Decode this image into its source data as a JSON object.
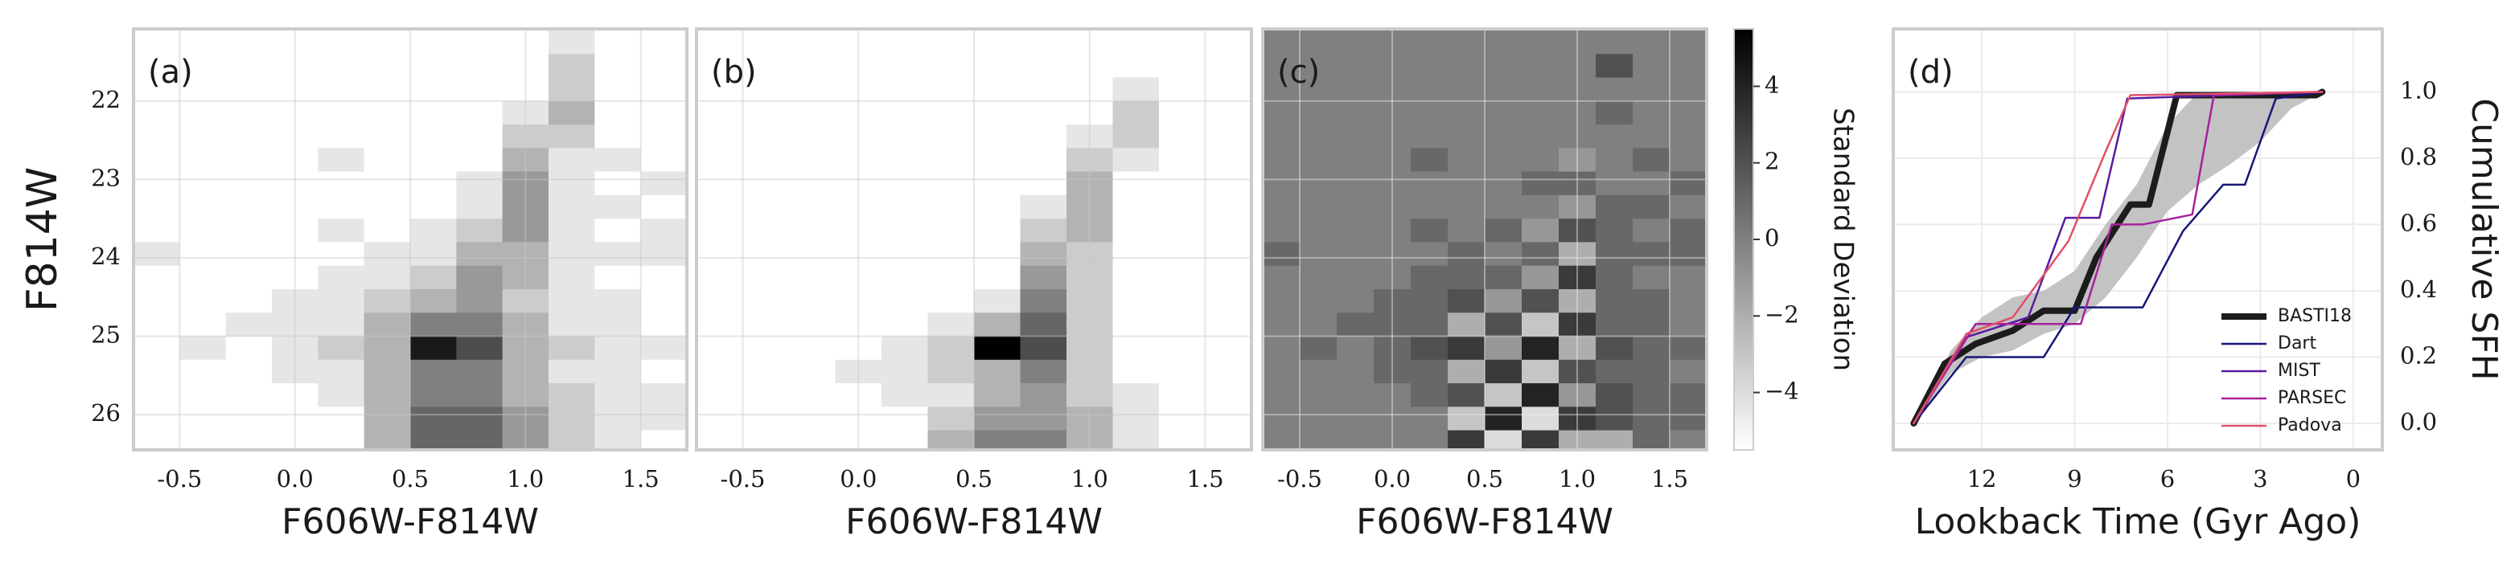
{
  "chart_data": [
    {
      "type": "heatmap",
      "panel_label": "(a)",
      "xlabel": "F606W-F814W",
      "ylabel": "F814W",
      "xlim": [
        -0.7,
        1.7
      ],
      "ylim": [
        26.45,
        21.08
      ],
      "xticks": [
        -0.5,
        {
          "value": 0,
          "label": "0.0"
        },
        0.5,
        {
          "value": 1,
          "label": "1.0"
        },
        1.5
      ],
      "yticks": [
        22,
        23,
        24,
        25,
        26
      ],
      "show_ytick_labels": true,
      "grid": true,
      "vlim": [
        0,
        10
      ],
      "xbins": [
        -0.7,
        -0.5,
        -0.3,
        -0.1,
        0.1,
        0.3,
        0.5,
        0.7,
        0.9,
        1.1,
        1.3,
        1.5,
        1.7
      ],
      "ybins": [
        21.1,
        21.4,
        21.7,
        22.0,
        22.3,
        22.6,
        22.9,
        23.2,
        23.5,
        23.8,
        24.1,
        24.4,
        24.7,
        25.0,
        25.3,
        25.6,
        25.9,
        26.2,
        26.5
      ],
      "z": [
        [
          0,
          0,
          0,
          0,
          0,
          0,
          0,
          0,
          0,
          1,
          0,
          0
        ],
        [
          0,
          0,
          0,
          0,
          0,
          0,
          0,
          0,
          0,
          2,
          0,
          0
        ],
        [
          0,
          0,
          0,
          0,
          0,
          0,
          0,
          0,
          0,
          2,
          0,
          0
        ],
        [
          0,
          0,
          0,
          0,
          0,
          0,
          0,
          0,
          1,
          3,
          0,
          0
        ],
        [
          0,
          0,
          0,
          0,
          0,
          0,
          0,
          0,
          2,
          2,
          0,
          0
        ],
        [
          0,
          0,
          0,
          0,
          1,
          0,
          0,
          0,
          3,
          1,
          1,
          0
        ],
        [
          0,
          0,
          0,
          0,
          0,
          0,
          0,
          1,
          4,
          1,
          0,
          1
        ],
        [
          0,
          0,
          0,
          0,
          0,
          0,
          0,
          1,
          4,
          1,
          1,
          0
        ],
        [
          0,
          0,
          0,
          0,
          1,
          0,
          1,
          2,
          4,
          1,
          0,
          1
        ],
        [
          1,
          0,
          0,
          0,
          0,
          1,
          1,
          3,
          3,
          1,
          1,
          1
        ],
        [
          0,
          0,
          0,
          0,
          1,
          1,
          2,
          4,
          3,
          1,
          0,
          0
        ],
        [
          0,
          0,
          0,
          1,
          1,
          2,
          3,
          4,
          2,
          1,
          1,
          0
        ],
        [
          0,
          0,
          1,
          1,
          1,
          3,
          5,
          5,
          3,
          1,
          1,
          0
        ],
        [
          0,
          1,
          0,
          1,
          2,
          3,
          9,
          7,
          3,
          2,
          1,
          1
        ],
        [
          0,
          0,
          0,
          1,
          1,
          3,
          5,
          5,
          3,
          1,
          1,
          0
        ],
        [
          0,
          0,
          0,
          0,
          1,
          3,
          5,
          5,
          3,
          2,
          1,
          1
        ],
        [
          0,
          0,
          0,
          0,
          0,
          3,
          6,
          6,
          4,
          2,
          1,
          1
        ],
        [
          0,
          0,
          0,
          0,
          0,
          3,
          6,
          6,
          4,
          2,
          1,
          0
        ]
      ]
    },
    {
      "type": "heatmap",
      "panel_label": "(b)",
      "xlabel": "F606W-F814W",
      "xlim": [
        -0.7,
        1.7
      ],
      "ylim": [
        26.45,
        21.08
      ],
      "xticks": [
        -0.5,
        {
          "value": 0,
          "label": "0.0"
        },
        0.5,
        {
          "value": 1,
          "label": "1.0"
        },
        1.5
      ],
      "yticks": [
        22,
        23,
        24,
        25,
        26
      ],
      "show_ytick_labels": false,
      "grid": true,
      "vlim": [
        0,
        10
      ],
      "xbins": [
        -0.7,
        -0.5,
        -0.3,
        -0.1,
        0.1,
        0.3,
        0.5,
        0.7,
        0.9,
        1.1,
        1.3,
        1.5,
        1.7
      ],
      "ybins": [
        21.1,
        21.4,
        21.7,
        22.0,
        22.3,
        22.6,
        22.9,
        23.2,
        23.5,
        23.8,
        24.1,
        24.4,
        24.7,
        25.0,
        25.3,
        25.6,
        25.9,
        26.2,
        26.5
      ],
      "z": [
        [
          0,
          0,
          0,
          0,
          0,
          0,
          0,
          0,
          0,
          0,
          0,
          0
        ],
        [
          0,
          0,
          0,
          0,
          0,
          0,
          0,
          0,
          0,
          0,
          0,
          0
        ],
        [
          0,
          0,
          0,
          0,
          0,
          0,
          0,
          0,
          0,
          1,
          0,
          0
        ],
        [
          0,
          0,
          0,
          0,
          0,
          0,
          0,
          0,
          0,
          2,
          0,
          0
        ],
        [
          0,
          0,
          0,
          0,
          0,
          0,
          0,
          0,
          1,
          2,
          0,
          0
        ],
        [
          0,
          0,
          0,
          0,
          0,
          0,
          0,
          0,
          2,
          1,
          0,
          0
        ],
        [
          0,
          0,
          0,
          0,
          0,
          0,
          0,
          0,
          3,
          0,
          0,
          0
        ],
        [
          0,
          0,
          0,
          0,
          0,
          0,
          0,
          1,
          3,
          0,
          0,
          0
        ],
        [
          0,
          0,
          0,
          0,
          0,
          0,
          0,
          2,
          3,
          0,
          0,
          0
        ],
        [
          0,
          0,
          0,
          0,
          0,
          0,
          0,
          3,
          2,
          0,
          0,
          0
        ],
        [
          0,
          0,
          0,
          0,
          0,
          0,
          0,
          4,
          2,
          0,
          0,
          0
        ],
        [
          0,
          0,
          0,
          0,
          0,
          0,
          1,
          5,
          2,
          0,
          0,
          0
        ],
        [
          0,
          0,
          0,
          0,
          0,
          1,
          3,
          6,
          2,
          0,
          0,
          0
        ],
        [
          0,
          0,
          0,
          0,
          1,
          2,
          10,
          7,
          2,
          0,
          0,
          0
        ],
        [
          0,
          0,
          0,
          1,
          1,
          2,
          3,
          5,
          2,
          0,
          0,
          0
        ],
        [
          0,
          0,
          0,
          0,
          1,
          1,
          3,
          4,
          2,
          1,
          0,
          0
        ],
        [
          0,
          0,
          0,
          0,
          0,
          2,
          4,
          4,
          3,
          1,
          0,
          0
        ],
        [
          0,
          0,
          0,
          0,
          0,
          3,
          5,
          5,
          3,
          1,
          0,
          0
        ]
      ]
    },
    {
      "type": "heatmap",
      "panel_label": "(c)",
      "xlabel": "F606W-F814W",
      "xlim": [
        -0.7,
        1.7
      ],
      "ylim": [
        26.45,
        21.08
      ],
      "xticks": [
        -0.5,
        {
          "value": 0,
          "label": "0.0"
        },
        0.5,
        {
          "value": 1,
          "label": "1.0"
        },
        1.5
      ],
      "yticks": [
        22,
        23,
        24,
        25,
        26
      ],
      "show_ytick_labels": false,
      "grid": true,
      "vlim": [
        -5.5,
        5.5
      ],
      "colorbar": {
        "label": "Standard Deviation",
        "ticks": [
          {
            "value": -4,
            "label": "−4"
          },
          {
            "value": -2,
            "label": "−2"
          },
          0,
          2,
          4
        ]
      },
      "xbins": [
        -0.7,
        -0.5,
        -0.3,
        -0.1,
        0.1,
        0.3,
        0.5,
        0.7,
        0.9,
        1.1,
        1.3,
        1.5,
        1.7
      ],
      "ybins": [
        21.1,
        21.4,
        21.7,
        22.0,
        22.3,
        22.6,
        22.9,
        23.2,
        23.5,
        23.8,
        24.1,
        24.4,
        24.7,
        25.0,
        25.3,
        25.6,
        25.9,
        26.2,
        26.5
      ],
      "z": [
        [
          0,
          0,
          0,
          0,
          0,
          0,
          0,
          0,
          0,
          0,
          0,
          0
        ],
        [
          0,
          0,
          0,
          0,
          0,
          0,
          0,
          0,
          0,
          2,
          0,
          0
        ],
        [
          0,
          0,
          0,
          0,
          0,
          0,
          0,
          0,
          0,
          0,
          0,
          0
        ],
        [
          0,
          0,
          0,
          0,
          0,
          0,
          0,
          0,
          0,
          1,
          0,
          0
        ],
        [
          0,
          0,
          0,
          0,
          0,
          0,
          0,
          0,
          0,
          0,
          0,
          0
        ],
        [
          0,
          0,
          0,
          0,
          1,
          0,
          0,
          0,
          -1,
          0,
          1,
          0
        ],
        [
          0,
          0,
          0,
          0,
          0,
          0,
          0,
          1,
          1,
          0,
          0,
          1
        ],
        [
          0,
          0,
          0,
          0,
          0,
          0,
          0,
          0,
          -1,
          1,
          1,
          0
        ],
        [
          0,
          0,
          0,
          0,
          1,
          0,
          1,
          -1,
          2,
          1,
          0,
          1
        ],
        [
          1,
          0,
          0,
          0,
          0,
          1,
          0,
          1,
          -2,
          1,
          1,
          1
        ],
        [
          0,
          0,
          0,
          0,
          1,
          1,
          1,
          -1,
          3,
          1,
          0,
          0
        ],
        [
          0,
          0,
          0,
          1,
          1,
          2,
          -1,
          2,
          -2,
          1,
          1,
          0
        ],
        [
          0,
          0,
          1,
          1,
          1,
          -2,
          2,
          -3,
          3,
          1,
          1,
          0
        ],
        [
          0,
          1,
          0,
          1,
          2,
          3,
          -1,
          4,
          -2,
          2,
          1,
          1
        ],
        [
          0,
          0,
          0,
          1,
          1,
          -2,
          3,
          -3,
          2,
          1,
          1,
          0
        ],
        [
          0,
          0,
          0,
          0,
          1,
          2,
          -3,
          4,
          -1,
          2,
          1,
          1
        ],
        [
          0,
          0,
          0,
          0,
          0,
          -3,
          4,
          -4,
          3,
          2,
          1,
          1
        ],
        [
          0,
          0,
          0,
          0,
          0,
          3,
          -4,
          3,
          -2,
          -2,
          1,
          0
        ]
      ]
    },
    {
      "type": "line",
      "panel_label": "(d)",
      "xlabel": "Lookback Time (Gyr Ago)",
      "ylabel": "Cumulative SFH",
      "xlim": [
        14.86,
        -0.94
      ],
      "ylim": [
        -0.08,
        1.19
      ],
      "xticks": [
        12,
        9,
        6,
        3,
        0
      ],
      "yticks": [
        {
          "value": 0,
          "label": "0.0"
        },
        0.2,
        0.4,
        0.6,
        0.8,
        {
          "value": 1,
          "label": "1.0"
        }
      ],
      "yaxis_side": "right",
      "grid": true,
      "legend": "lower right",
      "band_x": [
        14.2,
        13,
        12,
        11,
        10,
        9,
        8,
        7,
        6,
        5,
        4,
        3,
        2,
        1
      ],
      "band_lower": [
        0,
        0.15,
        0.2,
        0.22,
        0.27,
        0.3,
        0.38,
        0.5,
        0.64,
        0.72,
        0.78,
        0.85,
        0.95,
        1.0
      ],
      "band_upper": [
        0,
        0.22,
        0.32,
        0.38,
        0.4,
        0.46,
        0.6,
        0.72,
        0.9,
        1.0,
        1.0,
        1.0,
        1.0,
        1.0
      ],
      "band_color": "#bdbdbd",
      "series": [
        {
          "name": "BASTI18",
          "color": "#1c1c1c",
          "linewidth": 8,
          "x": [
            14.2,
            13.2,
            12.2,
            11,
            10,
            9,
            8.3,
            7.2,
            6.6,
            5.7,
            1.2,
            1
          ],
          "values": [
            0,
            0.18,
            0.24,
            0.28,
            0.34,
            0.34,
            0.5,
            0.66,
            0.66,
            0.99,
            0.99,
            1.0
          ]
        },
        {
          "name": "Dart",
          "color": "#16167a",
          "linewidth": 2.5,
          "x": [
            14.2,
            12.5,
            10,
            9,
            6.8,
            5.5,
            4.2,
            3.5,
            2.5,
            1
          ],
          "values": [
            0,
            0.2,
            0.2,
            0.35,
            0.35,
            0.58,
            0.72,
            0.72,
            0.98,
            1.0
          ]
        },
        {
          "name": "MIST",
          "color": "#5a1aa0",
          "linewidth": 2.5,
          "x": [
            14.2,
            12.5,
            10.5,
            9.3,
            8.2,
            7.3,
            1
          ],
          "values": [
            0,
            0.26,
            0.32,
            0.62,
            0.62,
            0.98,
            1.0
          ]
        },
        {
          "name": "PARSEC",
          "color": "#a8209c",
          "linewidth": 2.5,
          "x": [
            14.2,
            12.2,
            10.8,
            8.8,
            7.8,
            6.8,
            5.2,
            4.5,
            1
          ],
          "values": [
            0,
            0.3,
            0.3,
            0.3,
            0.6,
            0.6,
            0.63,
            0.99,
            1.0
          ]
        },
        {
          "name": "Padova",
          "color": "#e0506a",
          "linewidth": 2.5,
          "x": [
            14.2,
            12.5,
            11,
            9.2,
            8,
            7.2,
            1
          ],
          "values": [
            0,
            0.27,
            0.32,
            0.55,
            0.82,
            0.99,
            1.0
          ]
        }
      ]
    }
  ]
}
